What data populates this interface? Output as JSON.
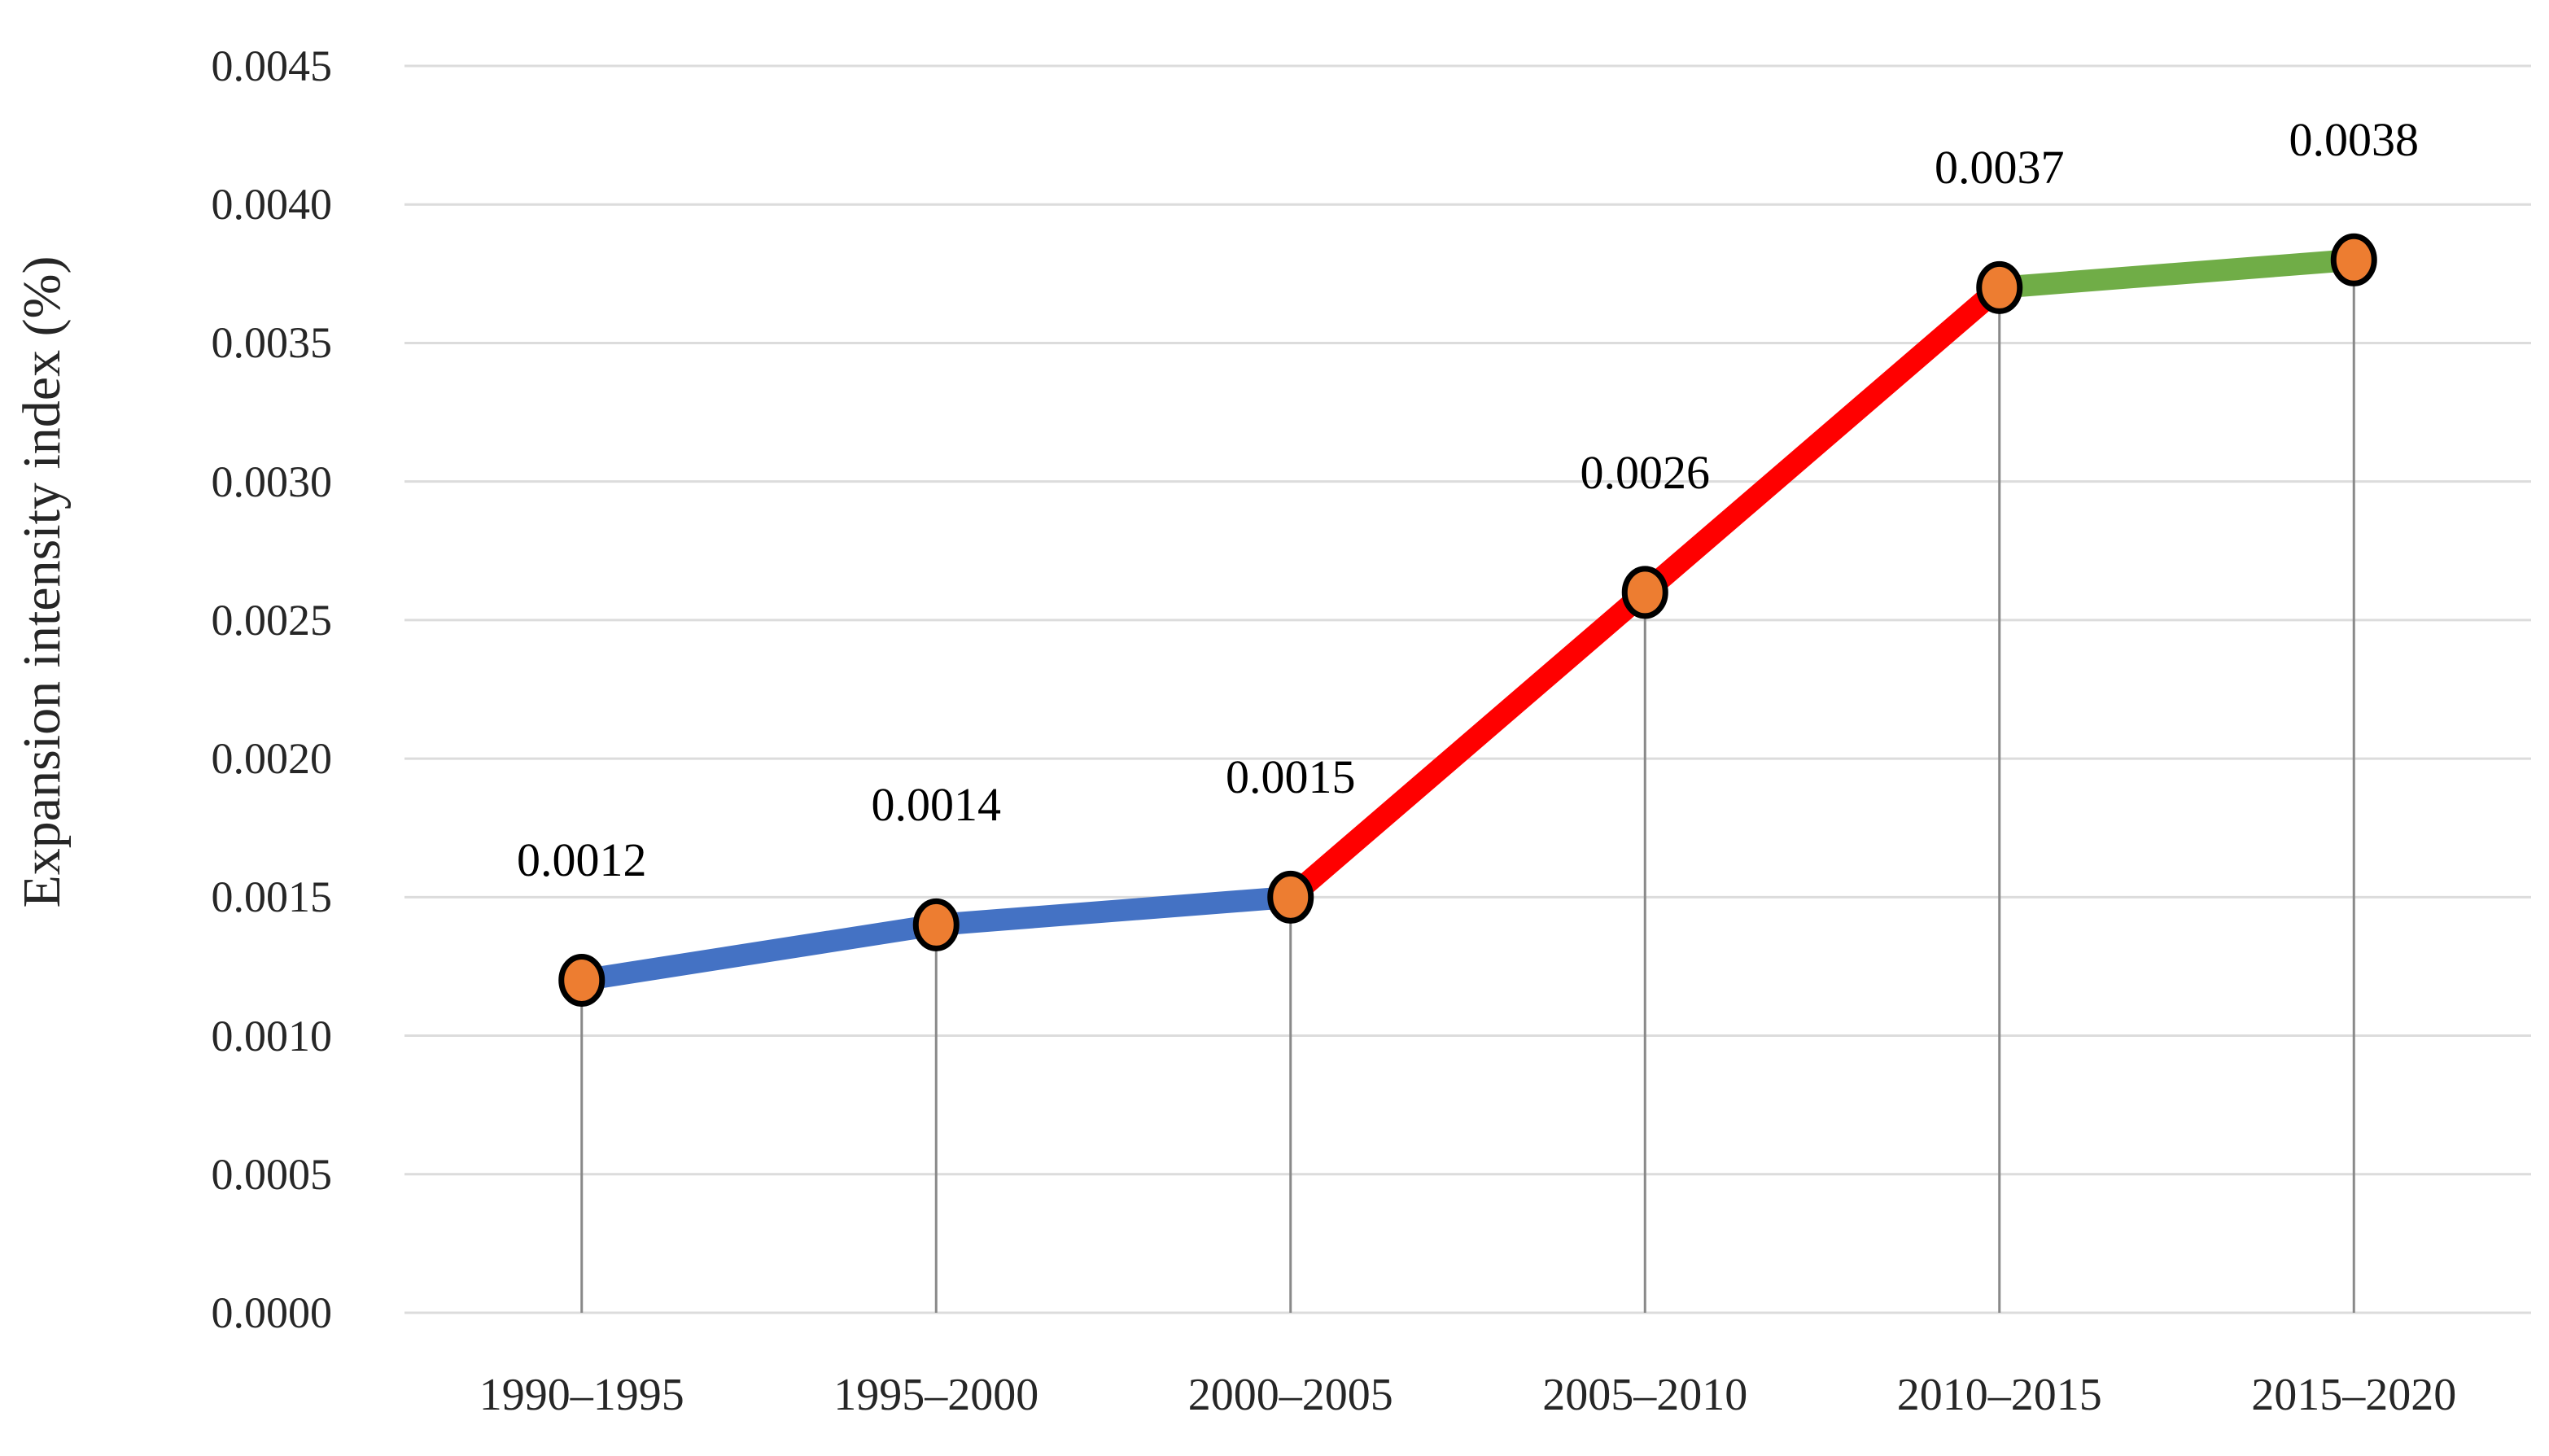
{
  "figure": {
    "background": "#ffffff"
  },
  "y_axis": {
    "title": "Expansion intensity index (%)",
    "tick_labels": [
      "0.0000",
      "0.0005",
      "0.0010",
      "0.0015",
      "0.0020",
      "0.0025",
      "0.0030",
      "0.0035",
      "0.0040",
      "0.0045"
    ]
  },
  "x_axis": {
    "tick_labels": [
      "1990–1995",
      "1995–2000",
      "2000–2005",
      "2005–2010",
      "2010–2015",
      "2015–2020"
    ]
  },
  "chart_data": {
    "type": "line",
    "title": "",
    "xlabel": "",
    "ylabel": "Expansion intensity index (%)",
    "categories": [
      "1990–1995",
      "1995–2000",
      "2000–2005",
      "2005–2010",
      "2010–2015",
      "2015–2020"
    ],
    "values": [
      0.0012,
      0.0014,
      0.0015,
      0.0026,
      0.0037,
      0.0038
    ],
    "point_labels": [
      "0.0012",
      "0.0014",
      "0.0015",
      "0.0026",
      "0.0037",
      "0.0038"
    ],
    "ylim": [
      0,
      0.0045
    ],
    "ytick_step": 0.0005,
    "grid": "horizontal",
    "legend": "none",
    "droplines": true,
    "colors": {
      "segment_colors": [
        "#4472C4",
        "#4472C4",
        "#FF0000",
        "#FF0000",
        "#70AD47"
      ],
      "marker_fill": "#ED7D31",
      "marker_stroke": "#000000",
      "gridline": "#DCDCDC",
      "dropline": "#898989",
      "text": "#262626"
    }
  }
}
